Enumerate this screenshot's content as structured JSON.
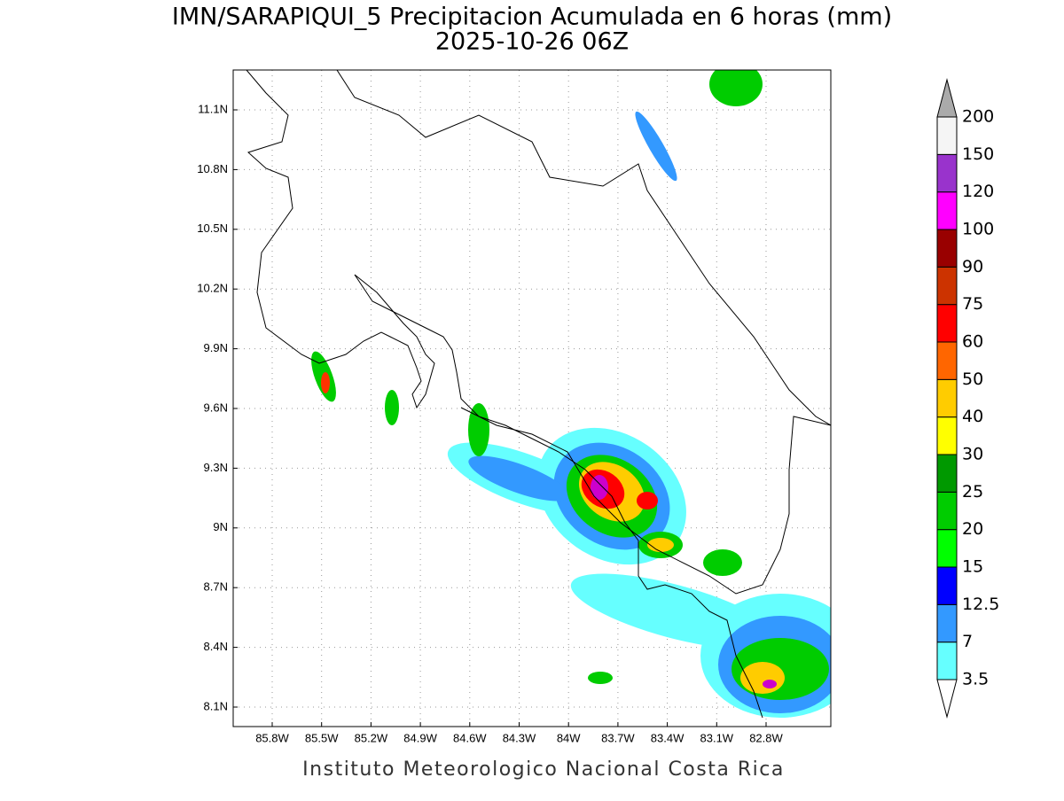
{
  "title": "IMN/SARAPIQUI_5 Precipitacion Acumulada en 6 horas (mm)",
  "subtitle": "2025-10-26 06Z",
  "lon_labels": [
    "85.8W",
    "85.5W",
    "85.2W",
    "84.9W",
    "84.6W",
    "84.3W",
    "84W",
    "83.7W",
    "83.4W",
    "83.1W",
    "82.8W"
  ],
  "lat_labels": [
    "11.1N",
    "10.8N",
    "10.5N",
    "10.2N",
    "9.9N",
    "9.6N",
    "9.3N",
    "9N",
    "8.7N",
    "8.4N",
    "8.1N"
  ],
  "legend": {
    "levels": [
      3.5,
      7,
      12.5,
      15,
      20,
      25,
      30,
      40,
      50,
      60,
      75,
      90,
      100,
      120,
      150,
      200
    ],
    "colors": [
      "#66ffff",
      "#3399ff",
      "#0000ff",
      "#00ff00",
      "#00cc00",
      "#009900",
      "#ffff00",
      "#ffcc00",
      "#ff6600",
      "#ff0000",
      "#cc3300",
      "#990000",
      "#ff00ff",
      "#9933cc",
      "#f5f5f5"
    ],
    "over_color": "#aaaaaa",
    "under_color": "#ffffff"
  },
  "footer": "Instituto Meteorologico Nacional Costa Rica"
}
